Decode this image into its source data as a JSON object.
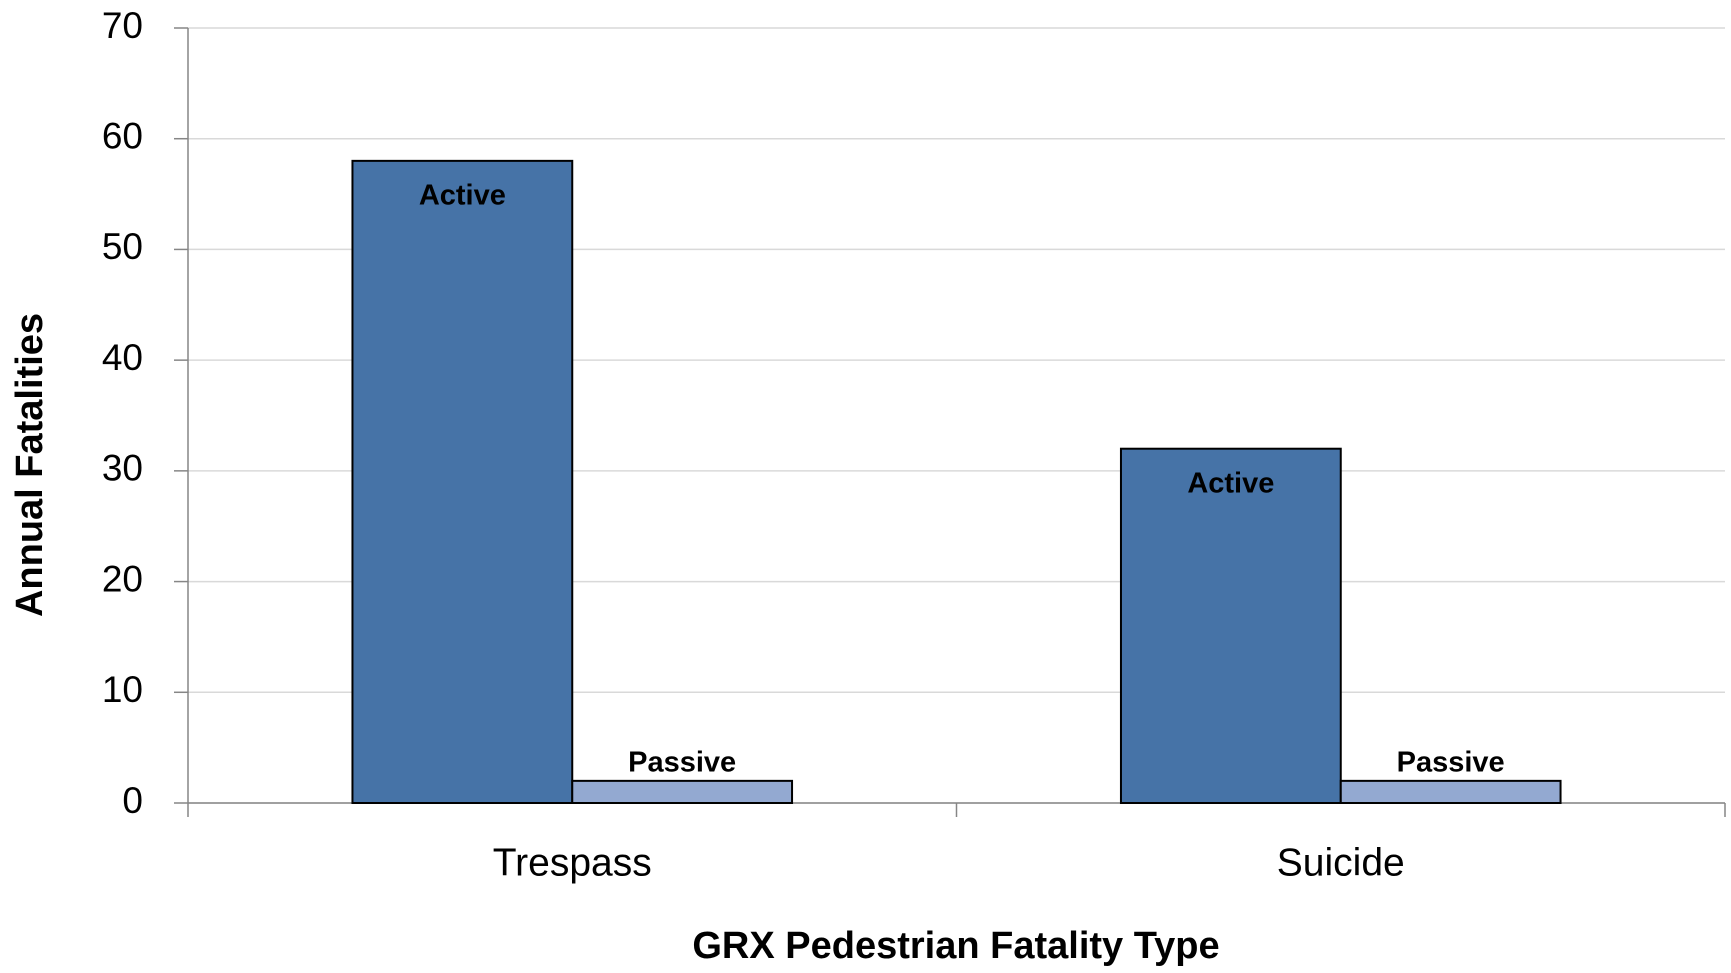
{
  "chart_data": {
    "type": "bar",
    "xlabel": "GRX Pedestrian Fatality Type",
    "ylabel": "Annual Fatalities",
    "categories": [
      "Trespass",
      "Suicide"
    ],
    "series": [
      {
        "name": "Active",
        "color": "#4673a7",
        "values": [
          58,
          32
        ]
      },
      {
        "name": "Passive",
        "color": "#93a9d1",
        "values": [
          2,
          2
        ]
      }
    ],
    "ylim": [
      0,
      70
    ],
    "yticks": [
      0,
      10,
      20,
      30,
      40,
      50,
      60,
      70
    ],
    "grid": true
  }
}
